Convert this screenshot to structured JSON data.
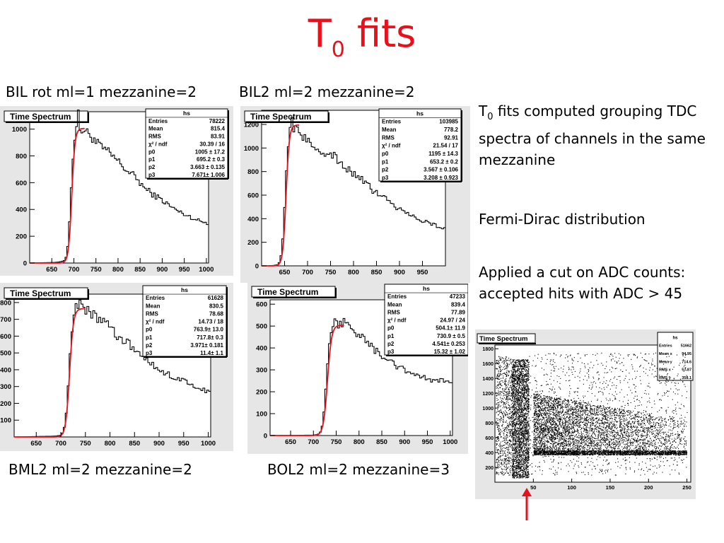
{
  "title": {
    "main": "T",
    "sub": "0",
    "rest": " fits"
  },
  "captions": [
    "BIL rot ml=1 mezzanine=2",
    "BIL2 ml=2 mezzanine=2",
    "BML2 ml=2 mezzanine=2",
    "BOL2 ml=2 mezzanine=3"
  ],
  "notes": {
    "line1_T": "T",
    "line1_sub": "0",
    "line1_rest": " fits computed grouping TDC spectra of channels in the same mezzanine",
    "line2": "Fermi-Dirac distribution",
    "line3": "Applied a cut on ADC counts: accepted hits with ADC > 45"
  },
  "chart_data": [
    {
      "type": "line",
      "title": "Time Spectrum",
      "stats_name": "hs",
      "xlim": [
        600,
        1005
      ],
      "ylim": [
        0,
        1130
      ],
      "xticks": [
        650,
        700,
        750,
        800,
        850,
        900,
        950,
        1000
      ],
      "yticks": [
        0,
        200,
        400,
        600,
        800,
        1000
      ],
      "stats": [
        [
          "Entries",
          "78222"
        ],
        [
          "Mean",
          "815.4"
        ],
        [
          "RMS",
          "83.91"
        ],
        [
          "χ² / ndf",
          "30.39 / 16"
        ],
        [
          "p0",
          "1005 ± 17.2"
        ],
        [
          "p1",
          "695.2 ± 0.3"
        ],
        [
          "p2",
          "3.663 ± 0.135"
        ],
        [
          "p3",
          "7.671± 1.006"
        ]
      ],
      "hist": {
        "x": [
          600,
          660,
          670,
          680,
          685,
          690,
          695,
          700,
          705,
          710,
          715,
          720,
          730,
          740,
          750,
          760,
          780,
          800,
          820,
          840,
          860,
          880,
          900,
          920,
          940,
          960,
          980,
          1000
        ],
        "y": [
          0,
          5,
          10,
          20,
          80,
          300,
          650,
          900,
          1000,
          1100,
          980,
          1000,
          970,
          950,
          900,
          870,
          820,
          760,
          690,
          640,
          560,
          510,
          470,
          420,
          380,
          350,
          320,
          300
        ]
      },
      "fit": {
        "p0": 1005,
        "p1": 695.2,
        "p2": 3.663,
        "p3": 7.671
      }
    },
    {
      "type": "line",
      "title": "Time Spectrum",
      "stats_name": "hs",
      "xlim": [
        600,
        1000
      ],
      "ylim": [
        0,
        1320
      ],
      "xticks": [
        650,
        700,
        750,
        800,
        850,
        900,
        950
      ],
      "yticks": [
        0,
        200,
        400,
        600,
        800,
        1000,
        1200
      ],
      "stats": [
        [
          "Entries",
          "103985"
        ],
        [
          "Mean",
          "778.2"
        ],
        [
          "RMS",
          "92.91"
        ],
        [
          "χ² / ndf",
          "21.54 / 17"
        ],
        [
          "p0",
          "1195 ± 14.3"
        ],
        [
          "p1",
          "653.2 ± 0.2"
        ],
        [
          "p2",
          "3.567 ± 0.106"
        ],
        [
          "p3",
          "3.208 ± 0.923"
        ]
      ],
      "hist": {
        "x": [
          610,
          625,
          635,
          640,
          645,
          650,
          655,
          660,
          665,
          670,
          680,
          690,
          700,
          720,
          740,
          760,
          780,
          800,
          820,
          840,
          860,
          880,
          900,
          920,
          940,
          960,
          980,
          1000
        ],
        "y": [
          0,
          3,
          10,
          40,
          150,
          500,
          900,
          1150,
          1230,
          1180,
          1160,
          1100,
          1060,
          1000,
          970,
          920,
          850,
          780,
          720,
          650,
          590,
          540,
          480,
          440,
          400,
          370,
          340,
          320
        ]
      },
      "fit": {
        "p0": 1195,
        "p1": 653.2,
        "p2": 3.567,
        "p3": 3.208
      }
    },
    {
      "type": "line",
      "title": "Time Spectrum",
      "stats_name": "hs",
      "xlim": [
        605,
        1005
      ],
      "ylim": [
        0,
        850
      ],
      "xticks": [
        650,
        700,
        750,
        800,
        850,
        900,
        950,
        1000
      ],
      "yticks": [
        100,
        200,
        300,
        400,
        500,
        600,
        700,
        800
      ],
      "stats": [
        [
          "Entries",
          "61628"
        ],
        [
          "Mean",
          "830.5"
        ],
        [
          "RMS",
          "78.68"
        ],
        [
          "χ² / ndf",
          "14.73 / 18"
        ],
        [
          "p0",
          "763.9± 13.0"
        ],
        [
          "p1",
          "717.8± 0.3"
        ],
        [
          "p2",
          "3.971± 0.181"
        ],
        [
          "p3",
          "11.4± 1.1"
        ]
      ],
      "hist": {
        "x": [
          605,
          690,
          700,
          705,
          710,
          715,
          720,
          725,
          730,
          735,
          740,
          745,
          750,
          760,
          780,
          800,
          820,
          840,
          860,
          880,
          900,
          920,
          940,
          960,
          980,
          1000
        ],
        "y": [
          0,
          5,
          10,
          30,
          100,
          300,
          550,
          700,
          760,
          780,
          790,
          770,
          760,
          740,
          700,
          650,
          590,
          550,
          490,
          440,
          400,
          370,
          350,
          320,
          290,
          270
        ]
      },
      "fit": {
        "p0": 763.9,
        "p1": 717.8,
        "p2": 3.971,
        "p3": 11.4
      }
    },
    {
      "type": "line",
      "title": "Time Spectrum",
      "stats_name": "hs",
      "xlim": [
        605,
        1005
      ],
      "ylim": [
        0,
        620
      ],
      "xticks": [
        650,
        700,
        750,
        800,
        850,
        900,
        950,
        1000
      ],
      "yticks": [
        0,
        100,
        200,
        300,
        400,
        500,
        600
      ],
      "stats": [
        [
          "Entries",
          "47233"
        ],
        [
          "Mean",
          "839.4"
        ],
        [
          "RMS",
          "77.89"
        ],
        [
          "χ² / ndf",
          "24.97 / 24"
        ],
        [
          "p0",
          "504.1± 11.9"
        ],
        [
          "p1",
          "730.9 ± 0.5"
        ],
        [
          "p2",
          "4.541± 0.253"
        ],
        [
          "p3",
          "15.32 ± 1.02"
        ]
      ],
      "hist": {
        "x": [
          605,
          700,
          710,
          715,
          720,
          725,
          730,
          735,
          740,
          745,
          750,
          760,
          770,
          780,
          800,
          820,
          840,
          860,
          880,
          900,
          920,
          940,
          960,
          980,
          1000
        ],
        "y": [
          0,
          2,
          5,
          15,
          50,
          150,
          300,
          420,
          480,
          520,
          510,
          505,
          520,
          495,
          460,
          420,
          380,
          350,
          320,
          300,
          280,
          265,
          250,
          250,
          240
        ]
      },
      "fit": {
        "p0": 504.1,
        "p1": 730.9,
        "p2": 4.541,
        "p3": 15.32
      }
    },
    {
      "type": "scatter",
      "title": "Time Spectrum",
      "stats_name": "hs",
      "xlim": [
        0,
        255
      ],
      "ylim": [
        0,
        1850
      ],
      "xticks": [
        50,
        100,
        150,
        200,
        250
      ],
      "yticks": [
        200,
        400,
        600,
        800,
        1000,
        1200,
        1400,
        1600,
        1800
      ],
      "stats": [
        [
          "Entries",
          "51662"
        ],
        [
          "Mean x",
          "94.95"
        ],
        [
          "Mean y",
          "714.6"
        ],
        [
          "RMS x",
          "57.87"
        ],
        [
          "RMS y",
          "358.1"
        ]
      ]
    }
  ]
}
